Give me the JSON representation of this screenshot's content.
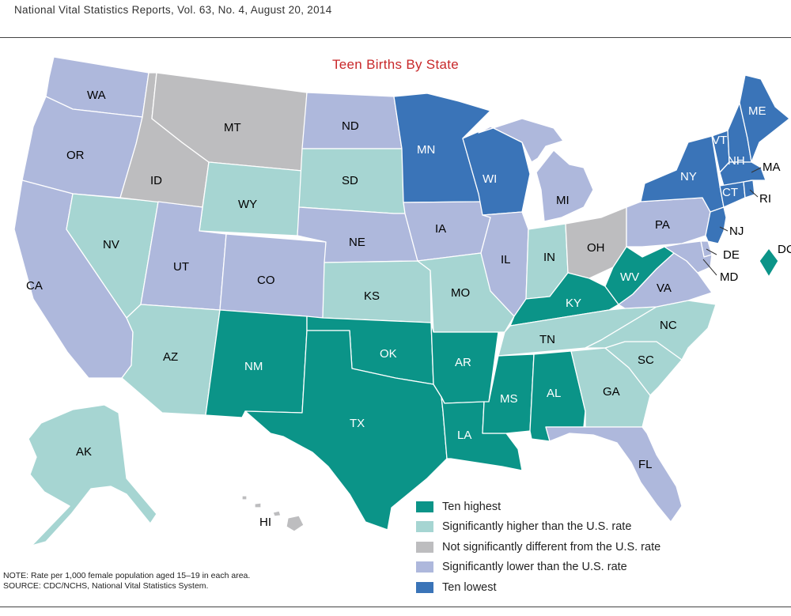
{
  "header": "National Vital Statistics Reports, Vol. 63, No. 4, August 20, 2014",
  "title": "Teen Births By State",
  "colors": {
    "ten_highest": "#0b9488",
    "higher": "#a6d5d2",
    "not_different": "#bdbdbf",
    "lower": "#aeb8dc",
    "ten_lowest": "#3a74b8"
  },
  "legend": [
    {
      "key": "ten_highest",
      "label": "Ten highest"
    },
    {
      "key": "higher",
      "label": "Significantly higher than the U.S. rate"
    },
    {
      "key": "not_different",
      "label": "Not significantly different from the U.S. rate"
    },
    {
      "key": "lower",
      "label": "Significantly lower than the U.S. rate"
    },
    {
      "key": "ten_lowest",
      "label": "Ten lowest"
    }
  ],
  "states": {
    "WA": "lower",
    "OR": "lower",
    "CA": "lower",
    "NV": "higher",
    "ID": "not_different",
    "MT": "not_different",
    "WY": "higher",
    "UT": "lower",
    "AZ": "higher",
    "CO": "lower",
    "NM": "ten_highest",
    "ND": "lower",
    "SD": "higher",
    "NE": "lower",
    "KS": "higher",
    "OK": "ten_highest",
    "TX": "ten_highest",
    "MN": "ten_lowest",
    "IA": "lower",
    "MO": "higher",
    "AR": "ten_highest",
    "LA": "ten_highest",
    "WI": "ten_lowest",
    "IL": "lower",
    "MI": "lower",
    "IN": "higher",
    "OH": "not_different",
    "KY": "ten_highest",
    "TN": "higher",
    "MS": "ten_highest",
    "AL": "ten_highest",
    "GA": "higher",
    "FL": "lower",
    "SC": "higher",
    "NC": "higher",
    "VA": "lower",
    "WV": "ten_highest",
    "PA": "lower",
    "NY": "ten_lowest",
    "VT": "ten_lowest",
    "NH": "ten_lowest",
    "ME": "ten_lowest",
    "MA": "ten_lowest",
    "CT": "ten_lowest",
    "RI": "ten_lowest",
    "NJ": "ten_lowest",
    "DE": "lower",
    "MD": "lower",
    "DC": "ten_highest",
    "AK": "higher",
    "HI": "not_different"
  },
  "note_line1": "NOTE: Rate per 1,000 female population aged 15–19 in each area.",
  "note_line2": "SOURCE: CDC/NCHS, National Vital Statistics System."
}
